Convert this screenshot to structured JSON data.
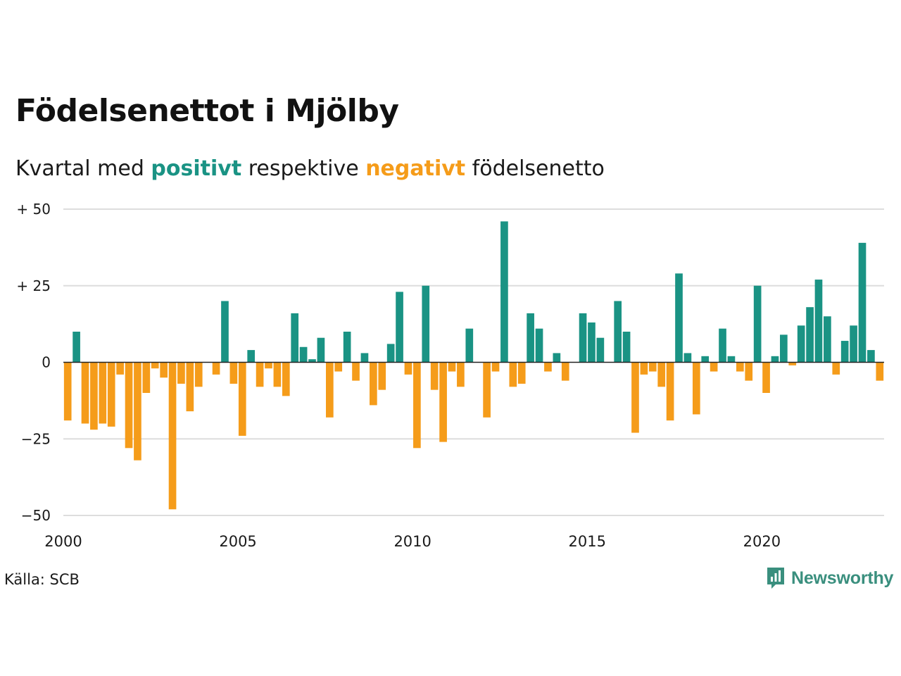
{
  "title": "Födelsenettot i Mjölby",
  "subtitle": {
    "prefix": "Kvartal med ",
    "positive_word": "positivt",
    "middle": " respektive ",
    "negative_word": "negativt",
    "suffix": " födelsenetto"
  },
  "source": "Källa: SCB",
  "brand": {
    "name": "Newsworthy",
    "icon": "newsworthy-logo-icon",
    "color": "#3a8f7e"
  },
  "colors": {
    "positive": "#1a9384",
    "negative": "#f59c1a",
    "grid": "#dddddd",
    "baseline": "#222222"
  },
  "chart_data": {
    "type": "bar",
    "title": "Födelsenettot i Mjölby",
    "xlabel": "",
    "ylabel": "",
    "ylim": [
      -50,
      50
    ],
    "xlim": [
      2000,
      2023.5
    ],
    "y_ticks": [
      50,
      25,
      0,
      -25,
      -50
    ],
    "y_tick_labels": [
      "+ 50",
      "+ 25",
      "0",
      "−25",
      "−50"
    ],
    "x_ticks": [
      2000,
      2005,
      2010,
      2015,
      2020
    ],
    "x_tick_labels": [
      "2000",
      "2005",
      "2010",
      "2015",
      "2020"
    ],
    "grid": true,
    "legend": "none",
    "start_quarter": "2000 Q1",
    "values": [
      -19,
      10,
      -20,
      -22,
      -20,
      -21,
      -4,
      -28,
      -32,
      -10,
      -2,
      -5,
      -48,
      -7,
      -16,
      -8,
      0,
      -4,
      20,
      -7,
      -24,
      4,
      -8,
      -2,
      -8,
      -11,
      16,
      5,
      1,
      8,
      -18,
      -3,
      10,
      -6,
      3,
      -14,
      -9,
      6,
      23,
      -4,
      -28,
      25,
      -9,
      -26,
      -3,
      -8,
      11,
      0,
      -18,
      -3,
      46,
      -8,
      -7,
      16,
      11,
      -3,
      3,
      -6,
      0,
      16,
      13,
      8,
      0,
      20,
      10,
      -23,
      -4,
      -3,
      -8,
      -19,
      29,
      3,
      -17,
      2,
      -3,
      11,
      2,
      -3,
      -6,
      25,
      -10,
      2,
      9,
      -1,
      12,
      18,
      27,
      15,
      -4,
      7,
      12,
      39,
      4,
      -6
    ]
  }
}
